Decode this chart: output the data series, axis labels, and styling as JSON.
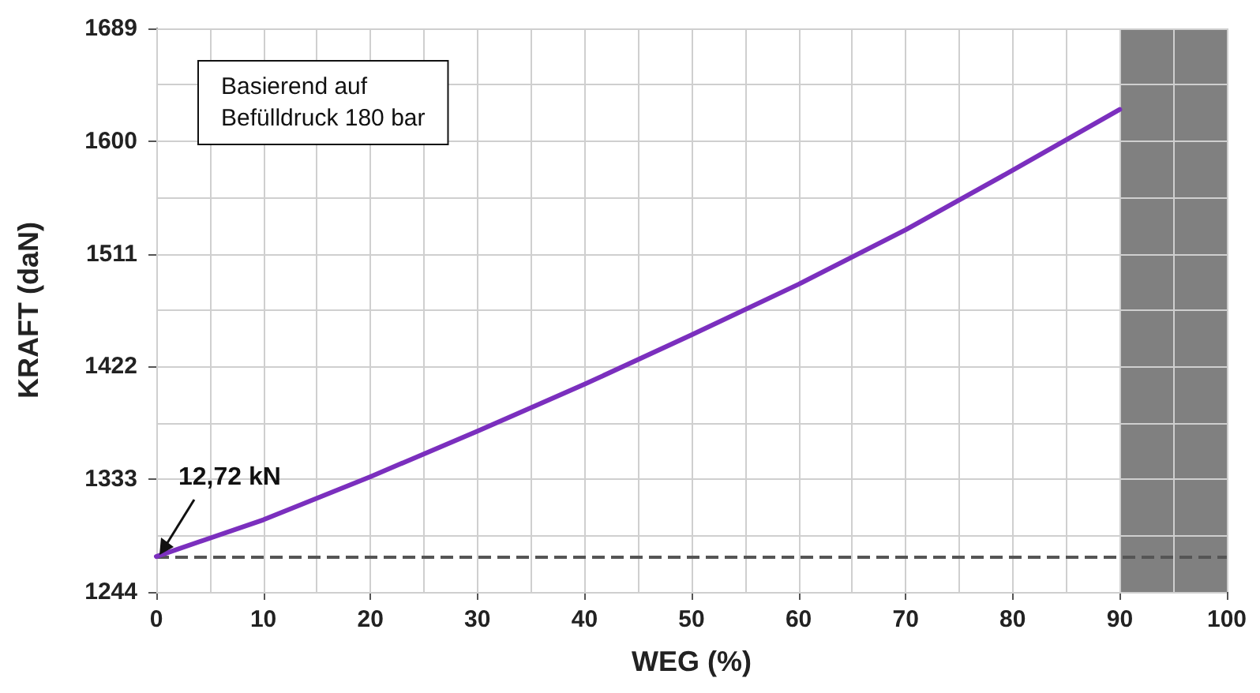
{
  "chart_data": {
    "type": "line",
    "xlabel": "WEG (%)",
    "ylabel": "KRAFT (daN)",
    "x": [
      0,
      10,
      20,
      30,
      40,
      50,
      60,
      70,
      80,
      90
    ],
    "series": [
      {
        "color": "#7b2fbe",
        "values": [
          1272,
          1301,
          1335,
          1371,
          1408,
          1447,
          1487,
          1530,
          1577,
          1625
        ]
      }
    ],
    "xlim": [
      0,
      100
    ],
    "xticks": [
      0,
      10,
      20,
      30,
      40,
      50,
      60,
      70,
      80,
      90,
      100
    ],
    "ylim": [
      1244,
      1689
    ],
    "yticks": [
      1244,
      1333,
      1422,
      1511,
      1600,
      1689
    ],
    "grid": true,
    "marker": "none",
    "line_style": "solid",
    "ref_lines": [
      {
        "axis": "y",
        "value": 1272,
        "color": "#555555",
        "line_style": "dashed"
      }
    ],
    "bands": [
      {
        "axis": "x",
        "from": 90,
        "to": 100,
        "color": "#808080"
      }
    ],
    "annotations": [
      "Basierend auf\nBefülldruck 180 bar",
      {
        "text": "12,72 kN",
        "x": 0,
        "y": 1272
      }
    ]
  }
}
